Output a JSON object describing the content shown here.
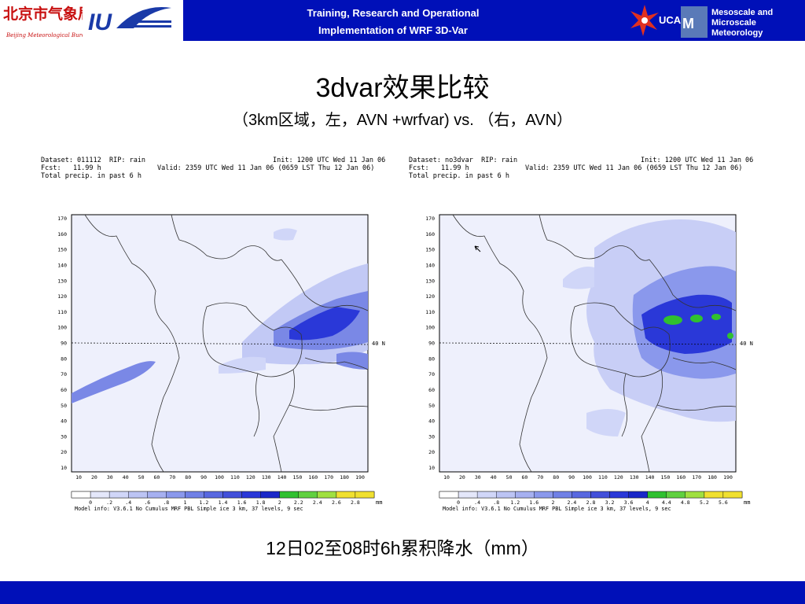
{
  "header": {
    "line1": "Training, Research and Operational",
    "line2": "Implementation of WRF 3D-Var",
    "ucar_label": "UCAR",
    "right_line1": "Mesoscale and",
    "right_line2": "Microscale Meteorology",
    "left_logo_cn": "北京市气象局",
    "left_logo_en": "Beijing Meteorological Bureau",
    "iu_logo": "IU"
  },
  "title": "3dvar效果比较",
  "subtitle": "（3km区域，左，AVN +wrfvar) vs. （右，AVN）",
  "panels": {
    "left": {
      "dataset": "Dataset: 011112  RIP: rain",
      "fcst": "Fcst:   11.99 h",
      "total": "Total precip. in past 6 h",
      "init": "Init: 1200 UTC Wed 11 Jan 06",
      "valid": "Valid: 2359 UTC Wed 11 Jan 06 (0659 LST Thu 12 Jan 06)",
      "lat_label": "40 N",
      "model_info": "Model info: V3.6.1 No Cumulus MRF PBL    Simple ice     3 km,  37 levels,     9 sec",
      "colorbar_labels": [
        "0",
        ".2",
        ".4",
        ".6",
        ".8",
        "1",
        "1.2",
        "1.4",
        "1.6",
        "1.8",
        "2",
        "2.2",
        "2.4",
        "2.6",
        "2.8"
      ],
      "unit": "mm"
    },
    "right": {
      "dataset": "Dataset: no3dvar  RIP: rain",
      "fcst": "Fcst:   11.99 h",
      "total": "Total precip. in past 6 h",
      "init": "Init: 1200 UTC Wed 11 Jan 06",
      "valid": "Valid: 2359 UTC Wed 11 Jan 06 (0659 LST Thu 12 Jan 06)",
      "lat_label": "40 N",
      "model_info": "Model info: V3.6.1 No Cumulus MRF PBL    Simple ice     3 km,  37 levels,     9 sec",
      "colorbar_labels": [
        "0",
        ".4",
        ".8",
        "1.2",
        "1.6",
        "2",
        "2.4",
        "2.8",
        "3.2",
        "3.6",
        "4",
        "4.4",
        "4.8",
        "5.2",
        "5.6"
      ],
      "unit": "mm"
    },
    "y_ticks": [
      "170",
      "160",
      "150",
      "140",
      "130",
      "120",
      "110",
      "100",
      "90",
      "80",
      "70",
      "60",
      "50",
      "40",
      "30",
      "20",
      "10"
    ],
    "x_ticks": [
      "10",
      "20",
      "30",
      "40",
      "50",
      "60",
      "70",
      "80",
      "90",
      "100",
      "110",
      "120",
      "130",
      "140",
      "150",
      "160",
      "170",
      "180",
      "190"
    ]
  },
  "caption": "12日02至08时6h累积降水（mm）",
  "colors": {
    "header_blue": "#0010b8",
    "rain_light": "#d8dcf8",
    "rain_mid": "#8a98ec",
    "rain_dark": "#2a38d8",
    "rain_green": "#30c030"
  }
}
